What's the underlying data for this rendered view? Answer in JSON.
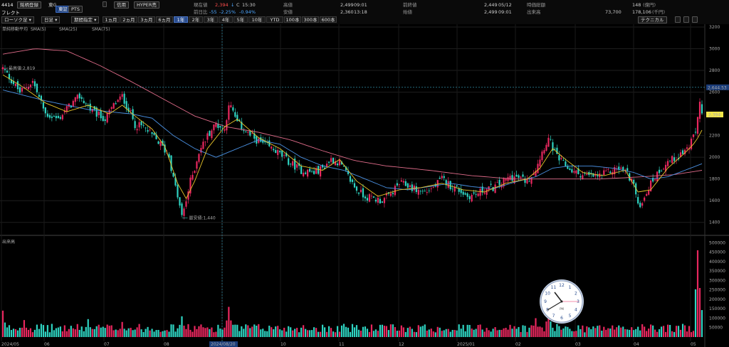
{
  "header": {
    "code": "4414",
    "watch_label": "銘柄登録",
    "market": "東G",
    "market_tab": "東証",
    "pts_tab": "PTS",
    "credit_btn": "信用",
    "hyper_btn": "HYPER売",
    "name": "フレクト",
    "chart_type_select": "ローソク足",
    "period_select": "日足",
    "range_select": "期間指定",
    "technical_btn": "テクニカル",
    "quote": {
      "now_label": "現在値",
      "now_value": "2,394",
      "now_mark": "↓",
      "now_c": "C",
      "now_time": "15:30",
      "prev_label": "前日比",
      "prev_value": "-55",
      "prev_pct": "-2.25%",
      "prev_pct2": "-0.94%",
      "high_label": "高値",
      "high_value": "2,499",
      "high_time": "09:01",
      "low_label": "安値",
      "low_value": "2,360",
      "low_time": "13:18",
      "close_label": "前終値",
      "close_value": "2,449",
      "close_date": "05/12",
      "open_label": "始値",
      "open_value": "2,499",
      "open_time": "09:01",
      "mcap_label": "時価総額",
      "mcap_value": "148",
      "mcap_unit": "(億円)",
      "vol_label": "出来高",
      "vol_value": "73,700",
      "turnover_value": "178,106",
      "turnover_unit": "(千円)"
    },
    "periods": [
      "1ヵ月",
      "2ヵ月",
      "3ヵ月",
      "6ヵ月",
      "1年",
      "2年",
      "3年",
      "4年",
      "5年",
      "10年",
      "YTD",
      "100本",
      "300本",
      "600本"
    ],
    "active_period": "1年"
  },
  "chart_data": {
    "type": "candlestick",
    "legend": [
      "単純移動平均",
      "SMA(5)",
      "SMA(25)",
      "SMA(75)"
    ],
    "legend_colors": [
      "#cccccc",
      "#e6c229",
      "#4a90e2",
      "#e06c8a"
    ],
    "price_ylim": [
      1300,
      3200
    ],
    "price_ticks": [
      1400,
      1600,
      1800,
      2000,
      2200,
      2400,
      2600,
      2800,
      3000,
      3200
    ],
    "volume_label": "出来高",
    "volume_ylim": [
      0,
      520000
    ],
    "volume_ticks": [
      50000,
      100000,
      150000,
      200000,
      250000,
      300000,
      350000,
      400000,
      450000,
      500000
    ],
    "x_labels": [
      "2024/05",
      "06",
      "07",
      "08",
      "2024/08/20",
      "10",
      "11",
      "12",
      "2025/01",
      "02",
      "03",
      "04",
      "05"
    ],
    "high_annotation": "最高値:2,819",
    "low_annotation": "最安値:1,440",
    "crosshair_price": "2,644.53",
    "last_price_label": "2,394",
    "up_color": "#e8275e",
    "down_color": "#2ed3c1",
    "close_path": [
      [
        0,
        2820
      ],
      [
        8,
        2600
      ],
      [
        14,
        2700
      ],
      [
        20,
        2400
      ],
      [
        26,
        2350
      ],
      [
        30,
        2450
      ],
      [
        36,
        2560
      ],
      [
        42,
        2420
      ],
      [
        48,
        2350
      ],
      [
        52,
        2480
      ],
      [
        56,
        2560
      ],
      [
        60,
        2400
      ],
      [
        62,
        2300
      ],
      [
        66,
        2280
      ],
      [
        70,
        2200
      ],
      [
        74,
        2120
      ],
      [
        78,
        2010
      ],
      [
        80,
        1800
      ],
      [
        82,
        1640
      ],
      [
        84,
        1450
      ],
      [
        86,
        1600
      ],
      [
        88,
        1780
      ],
      [
        90,
        1900
      ],
      [
        92,
        2050
      ],
      [
        96,
        2200
      ],
      [
        100,
        2310
      ],
      [
        104,
        2250
      ],
      [
        106,
        2500
      ],
      [
        110,
        2320
      ],
      [
        116,
        2200
      ],
      [
        122,
        2120
      ],
      [
        128,
        2060
      ],
      [
        134,
        1960
      ],
      [
        140,
        1880
      ],
      [
        146,
        1860
      ],
      [
        150,
        1900
      ],
      [
        154,
        1980
      ],
      [
        158,
        1950
      ],
      [
        162,
        1820
      ],
      [
        166,
        1700
      ],
      [
        170,
        1640
      ],
      [
        174,
        1620
      ],
      [
        178,
        1600
      ],
      [
        182,
        1660
      ],
      [
        186,
        1760
      ],
      [
        190,
        1740
      ],
      [
        194,
        1700
      ],
      [
        198,
        1680
      ],
      [
        202,
        1720
      ],
      [
        206,
        1800
      ],
      [
        210,
        1740
      ],
      [
        214,
        1700
      ],
      [
        218,
        1640
      ],
      [
        222,
        1660
      ],
      [
        226,
        1700
      ],
      [
        230,
        1720
      ],
      [
        234,
        1760
      ],
      [
        238,
        1820
      ],
      [
        242,
        1810
      ],
      [
        246,
        1780
      ],
      [
        250,
        1900
      ],
      [
        254,
        2100
      ],
      [
        256,
        2170
      ],
      [
        260,
        2000
      ],
      [
        264,
        1920
      ],
      [
        268,
        1860
      ],
      [
        272,
        1840
      ],
      [
        276,
        1820
      ],
      [
        280,
        1830
      ],
      [
        284,
        1860
      ],
      [
        288,
        1900
      ],
      [
        292,
        1880
      ],
      [
        296,
        1760
      ],
      [
        298,
        1540
      ],
      [
        300,
        1600
      ],
      [
        304,
        1760
      ],
      [
        308,
        1880
      ],
      [
        312,
        1960
      ],
      [
        316,
        2000
      ],
      [
        320,
        2060
      ],
      [
        322,
        2100
      ],
      [
        325,
        2220
      ],
      [
        327,
        2530
      ],
      [
        328,
        2394
      ]
    ],
    "sma5_path": [
      [
        0,
        2760
      ],
      [
        10,
        2640
      ],
      [
        20,
        2500
      ],
      [
        30,
        2420
      ],
      [
        40,
        2480
      ],
      [
        50,
        2400
      ],
      [
        56,
        2480
      ],
      [
        62,
        2380
      ],
      [
        70,
        2260
      ],
      [
        76,
        2100
      ],
      [
        82,
        1760
      ],
      [
        86,
        1620
      ],
      [
        90,
        1780
      ],
      [
        96,
        2080
      ],
      [
        104,
        2280
      ],
      [
        110,
        2350
      ],
      [
        120,
        2180
      ],
      [
        130,
        2080
      ],
      [
        140,
        1920
      ],
      [
        150,
        1880
      ],
      [
        158,
        1980
      ],
      [
        166,
        1780
      ],
      [
        176,
        1640
      ],
      [
        186,
        1700
      ],
      [
        196,
        1720
      ],
      [
        206,
        1760
      ],
      [
        216,
        1700
      ],
      [
        226,
        1680
      ],
      [
        236,
        1760
      ],
      [
        246,
        1800
      ],
      [
        252,
        1900
      ],
      [
        258,
        2080
      ],
      [
        264,
        1980
      ],
      [
        272,
        1860
      ],
      [
        282,
        1830
      ],
      [
        292,
        1880
      ],
      [
        298,
        1680
      ],
      [
        304,
        1700
      ],
      [
        312,
        1900
      ],
      [
        320,
        2040
      ],
      [
        325,
        2140
      ],
      [
        328,
        2250
      ]
    ],
    "sma25_path": [
      [
        0,
        2620
      ],
      [
        20,
        2520
      ],
      [
        40,
        2440
      ],
      [
        60,
        2400
      ],
      [
        70,
        2360
      ],
      [
        80,
        2200
      ],
      [
        90,
        2080
      ],
      [
        100,
        2000
      ],
      [
        110,
        2080
      ],
      [
        120,
        2160
      ],
      [
        130,
        2120
      ],
      [
        140,
        2000
      ],
      [
        150,
        1920
      ],
      [
        160,
        1880
      ],
      [
        170,
        1800
      ],
      [
        180,
        1720
      ],
      [
        190,
        1700
      ],
      [
        200,
        1730
      ],
      [
        210,
        1760
      ],
      [
        220,
        1730
      ],
      [
        230,
        1710
      ],
      [
        240,
        1770
      ],
      [
        250,
        1820
      ],
      [
        258,
        1900
      ],
      [
        266,
        1920
      ],
      [
        276,
        1920
      ],
      [
        286,
        1900
      ],
      [
        296,
        1860
      ],
      [
        304,
        1800
      ],
      [
        312,
        1820
      ],
      [
        320,
        1880
      ],
      [
        328,
        1940
      ]
    ],
    "sma75_path": [
      [
        0,
        2950
      ],
      [
        15,
        3000
      ],
      [
        30,
        2980
      ],
      [
        45,
        2850
      ],
      [
        60,
        2700
      ],
      [
        75,
        2540
      ],
      [
        90,
        2380
      ],
      [
        105,
        2280
      ],
      [
        120,
        2230
      ],
      [
        135,
        2160
      ],
      [
        150,
        2060
      ],
      [
        165,
        1970
      ],
      [
        180,
        1920
      ],
      [
        200,
        1880
      ],
      [
        220,
        1830
      ],
      [
        240,
        1800
      ],
      [
        260,
        1800
      ],
      [
        280,
        1800
      ],
      [
        300,
        1820
      ],
      [
        315,
        1840
      ],
      [
        328,
        1880
      ]
    ],
    "volume_spikes": [
      [
        0,
        140000
      ],
      [
        10,
        90000
      ],
      [
        40,
        95000
      ],
      [
        56,
        80000
      ],
      [
        84,
        110000
      ],
      [
        106,
        160000
      ],
      [
        160,
        70000
      ],
      [
        250,
        100000
      ],
      [
        256,
        150000
      ],
      [
        300,
        60000
      ],
      [
        326,
        460000
      ],
      [
        327,
        260000
      ],
      [
        328,
        73700
      ]
    ]
  },
  "clock": {
    "label": "PM",
    "numbers": [
      "12",
      "1",
      "2",
      "3",
      "4",
      "5",
      "6",
      "7",
      "8",
      "9",
      "10",
      "11"
    ]
  }
}
